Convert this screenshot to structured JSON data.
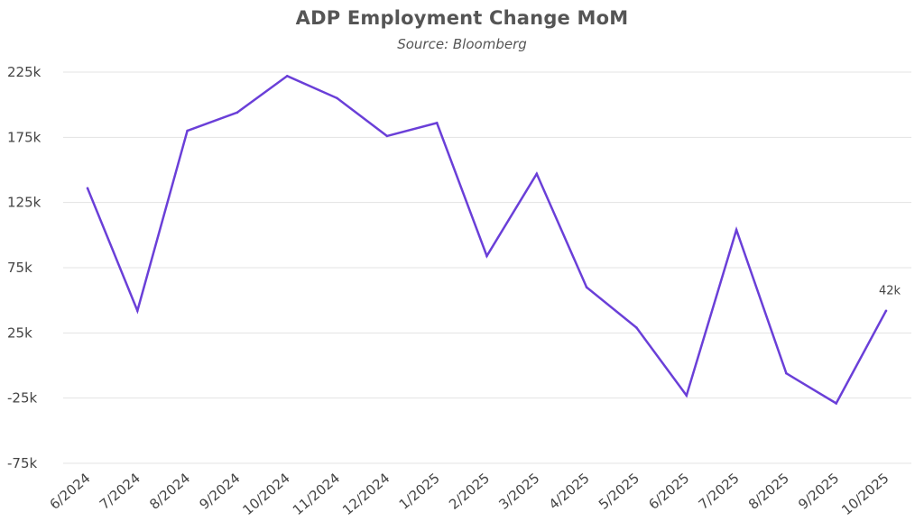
{
  "chart_data": {
    "type": "line",
    "title": "ADP Employment Change MoM",
    "subtitle": "Source: Bloomberg",
    "xlabel": "",
    "ylabel": "",
    "categories": [
      "6/2024",
      "7/2024",
      "8/2024",
      "9/2024",
      "10/2024",
      "11/2024",
      "12/2024",
      "1/2025",
      "2/2025",
      "3/2025",
      "4/2025",
      "5/2025",
      "6/2025",
      "7/2025",
      "8/2025",
      "9/2025",
      "10/2025"
    ],
    "series": [
      {
        "name": "ADP Employment Change",
        "color": "#6a3fd8",
        "values": [
          136,
          42,
          180,
          194,
          222,
          205,
          176,
          186,
          84,
          147,
          60,
          29,
          -23,
          104,
          -6,
          -29,
          42
        ]
      }
    ],
    "yticks": [
      225,
      175,
      125,
      75,
      25,
      -25,
      -75
    ],
    "ytick_labels": [
      "225k",
      "175k",
      "125k",
      "75k",
      "25k",
      "-25k",
      "-75k"
    ],
    "ylim": [
      -75,
      225
    ],
    "grid": true,
    "annotations": [
      {
        "category": "10/2025",
        "text": "42k"
      }
    ]
  }
}
